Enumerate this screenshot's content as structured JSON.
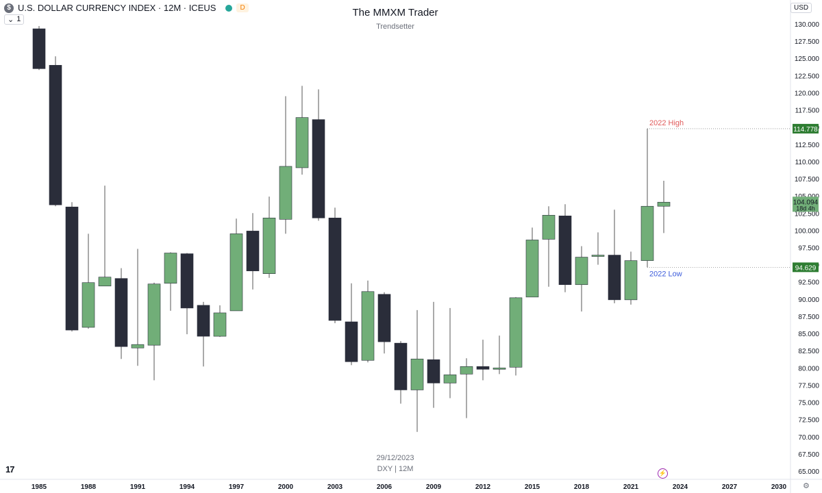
{
  "header": {
    "title": "U.S. DOLLAR CURRENCY INDEX · 12M · ICEUS",
    "currency_symbol": "$",
    "badge": "D",
    "interval_count": "1"
  },
  "watermark": {
    "title": "The MMXM Trader",
    "subtitle": "Trendsetter",
    "date": "29/12/2023",
    "symbol": "DXY | 12M"
  },
  "axis": {
    "currency": "USD"
  },
  "logo": "17",
  "icons": {
    "settings": "gear-icon",
    "bolt": "bolt-icon",
    "logo": "tradingview-logo-icon"
  },
  "colors": {
    "up": "#71ae78",
    "down": "#2a2d3a",
    "wick": "#555555",
    "high_label": "#e05b5b",
    "low_label": "#3b5bdb",
    "price_tag": "#2e7d32"
  },
  "chart_data": {
    "type": "candlestick",
    "title": "",
    "ylim": [
      65,
      130
    ],
    "xlim": [
      1984,
      2030.5
    ],
    "y_ticks": [
      "65.000",
      "67.500",
      "70.000",
      "72.500",
      "75.000",
      "77.500",
      "80.000",
      "82.500",
      "85.000",
      "87.500",
      "90.000",
      "92.500",
      "95.000",
      "97.500",
      "100.000",
      "102.500",
      "105.000",
      "107.500",
      "110.000",
      "112.500",
      "115.000",
      "117.500",
      "120.000",
      "122.500",
      "125.000",
      "127.500",
      "130.000"
    ],
    "x_ticks": [
      "1985",
      "1988",
      "1991",
      "1994",
      "1997",
      "2000",
      "2003",
      "2006",
      "2009",
      "2012",
      "2015",
      "2018",
      "2021",
      "2024",
      "2027",
      "2030"
    ],
    "candles": [
      {
        "year": 1985,
        "open": 129.3,
        "high": 129.7,
        "low": 123.3,
        "close": 123.5
      },
      {
        "year": 1986,
        "open": 124.0,
        "high": 125.3,
        "low": 103.5,
        "close": 103.7
      },
      {
        "year": 1987,
        "open": 103.4,
        "high": 104.1,
        "low": 85.3,
        "close": 85.5
      },
      {
        "year": 1988,
        "open": 85.9,
        "high": 99.5,
        "low": 85.7,
        "close": 92.4
      },
      {
        "year": 1989,
        "open": 91.9,
        "high": 106.5,
        "low": 91.9,
        "close": 93.2
      },
      {
        "year": 1990,
        "open": 93.0,
        "high": 94.5,
        "low": 81.3,
        "close": 83.1
      },
      {
        "year": 1991,
        "open": 82.9,
        "high": 97.3,
        "low": 80.3,
        "close": 83.4
      },
      {
        "year": 1992,
        "open": 83.3,
        "high": 92.4,
        "low": 78.2,
        "close": 92.2
      },
      {
        "year": 1993,
        "open": 92.3,
        "high": 96.8,
        "low": 88.3,
        "close": 96.7
      },
      {
        "year": 1994,
        "open": 96.6,
        "high": 96.7,
        "low": 84.9,
        "close": 88.7
      },
      {
        "year": 1995,
        "open": 89.1,
        "high": 89.6,
        "low": 80.2,
        "close": 84.6
      },
      {
        "year": 1996,
        "open": 84.6,
        "high": 89.1,
        "low": 84.5,
        "close": 88.0
      },
      {
        "year": 1997,
        "open": 88.3,
        "high": 101.7,
        "low": 88.3,
        "close": 99.5
      },
      {
        "year": 1998,
        "open": 99.9,
        "high": 102.5,
        "low": 91.4,
        "close": 94.1
      },
      {
        "year": 1999,
        "open": 93.7,
        "high": 104.9,
        "low": 93.1,
        "close": 101.8
      },
      {
        "year": 2000,
        "open": 101.6,
        "high": 119.5,
        "low": 99.5,
        "close": 109.3
      },
      {
        "year": 2001,
        "open": 109.1,
        "high": 121.0,
        "low": 108.1,
        "close": 116.4
      },
      {
        "year": 2002,
        "open": 116.1,
        "high": 120.5,
        "low": 101.4,
        "close": 101.8
      },
      {
        "year": 2003,
        "open": 101.8,
        "high": 103.3,
        "low": 86.5,
        "close": 86.9
      },
      {
        "year": 2004,
        "open": 86.7,
        "high": 92.3,
        "low": 80.4,
        "close": 80.9
      },
      {
        "year": 2005,
        "open": 81.1,
        "high": 92.7,
        "low": 80.8,
        "close": 91.1
      },
      {
        "year": 2006,
        "open": 90.7,
        "high": 91.0,
        "low": 82.1,
        "close": 83.8
      },
      {
        "year": 2007,
        "open": 83.6,
        "high": 83.9,
        "low": 74.8,
        "close": 76.8
      },
      {
        "year": 2008,
        "open": 76.8,
        "high": 88.4,
        "low": 70.7,
        "close": 81.3
      },
      {
        "year": 2009,
        "open": 81.2,
        "high": 89.6,
        "low": 74.2,
        "close": 77.8
      },
      {
        "year": 2010,
        "open": 77.8,
        "high": 88.7,
        "low": 75.6,
        "close": 79.0
      },
      {
        "year": 2011,
        "open": 79.1,
        "high": 81.4,
        "low": 72.7,
        "close": 80.2
      },
      {
        "year": 2012,
        "open": 80.2,
        "high": 84.1,
        "low": 78.2,
        "close": 79.8
      },
      {
        "year": 2013,
        "open": 79.8,
        "high": 84.7,
        "low": 79.1,
        "close": 80.0
      },
      {
        "year": 2014,
        "open": 80.1,
        "high": 90.3,
        "low": 78.9,
        "close": 90.2
      },
      {
        "year": 2015,
        "open": 90.3,
        "high": 100.4,
        "low": 90.3,
        "close": 98.6
      },
      {
        "year": 2016,
        "open": 98.7,
        "high": 103.5,
        "low": 91.8,
        "close": 102.2
      },
      {
        "year": 2017,
        "open": 102.1,
        "high": 103.8,
        "low": 91.0,
        "close": 92.1
      },
      {
        "year": 2018,
        "open": 92.1,
        "high": 97.7,
        "low": 88.2,
        "close": 96.1
      },
      {
        "year": 2019,
        "open": 96.2,
        "high": 99.7,
        "low": 95.0,
        "close": 96.4
      },
      {
        "year": 2020,
        "open": 96.4,
        "high": 103.0,
        "low": 89.4,
        "close": 89.9
      },
      {
        "year": 2021,
        "open": 89.9,
        "high": 96.9,
        "low": 89.2,
        "close": 95.6
      },
      {
        "year": 2022,
        "open": 95.6,
        "high": 114.778,
        "low": 94.629,
        "close": 103.5
      },
      {
        "year": 2023,
        "open": 103.5,
        "high": 107.2,
        "low": 99.6,
        "close": 104.094
      }
    ],
    "levels": [
      {
        "label": "2022 High",
        "value": 114.778,
        "tag": "114.778",
        "color": "#e05b5b",
        "from_year": 2022
      },
      {
        "label": "2022 Low",
        "value": 94.629,
        "tag": "94.629",
        "color": "#3b5bdb",
        "from_year": 2022
      }
    ],
    "last_price": {
      "value": 104.094,
      "tag": "104.094",
      "countdown": "18d 4h"
    }
  }
}
